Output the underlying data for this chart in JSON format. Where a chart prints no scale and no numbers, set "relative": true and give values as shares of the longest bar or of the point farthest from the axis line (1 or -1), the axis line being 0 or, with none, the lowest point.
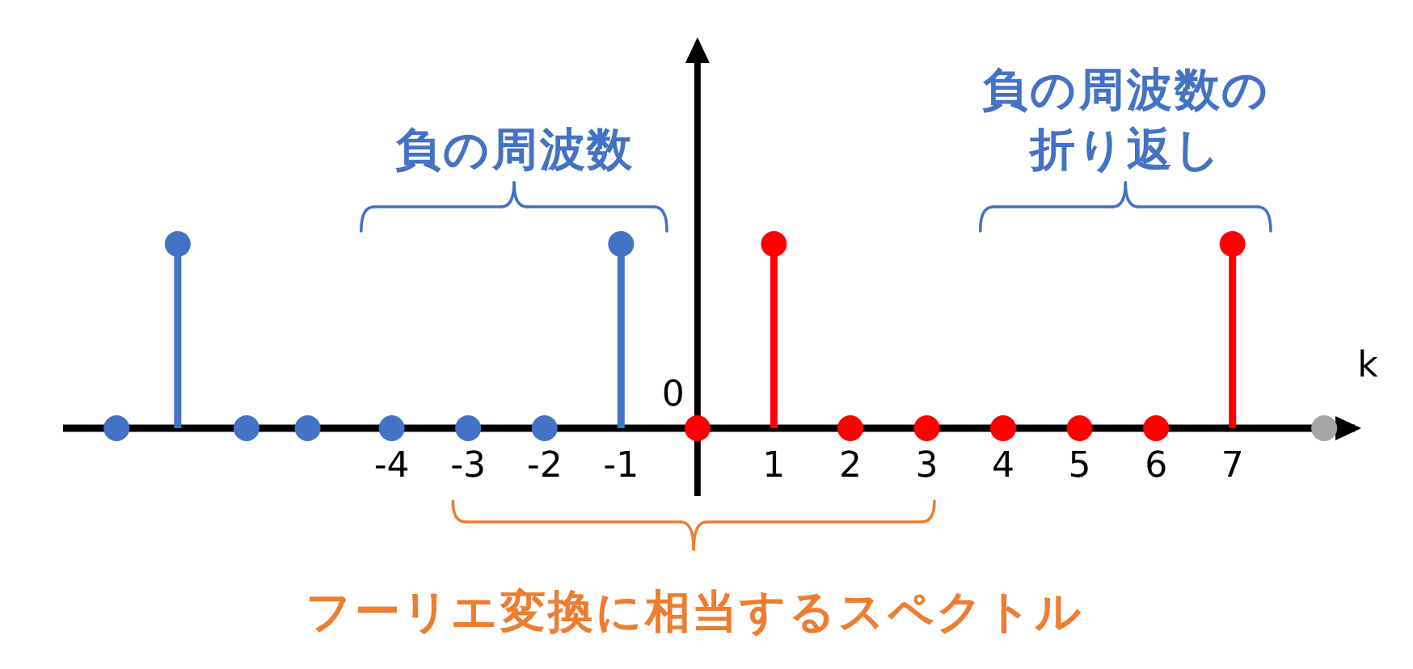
{
  "chart_data": {
    "type": "lollipop",
    "relative": true,
    "xlabel": "k",
    "xlim": [
      -8.3,
      8.6
    ],
    "xticks": [
      -4,
      -3,
      -2,
      -1,
      1,
      2,
      3,
      4,
      5,
      6,
      7
    ],
    "marker": "circle",
    "series": [
      {
        "color": "#4472c4",
        "x": [
          -7.6,
          -6.8,
          -5.9,
          -5.1,
          -4,
          -3,
          -2,
          -1
        ],
        "values": [
          0,
          1,
          0,
          0,
          0,
          0,
          0,
          1
        ]
      },
      {
        "color": "#ff0000",
        "x": [
          0,
          1,
          2,
          3,
          4,
          5,
          6,
          7
        ],
        "values": [
          0,
          1,
          0,
          0,
          0,
          0,
          0,
          1
        ]
      },
      {
        "color": "#a5a5a5",
        "x": [
          8.2
        ],
        "values": [
          0
        ]
      }
    ],
    "annotations": [
      "0",
      "負の周波数",
      "負の周波数の折り返し",
      "フーリエ変換に相当するスペクトル"
    ]
  }
}
